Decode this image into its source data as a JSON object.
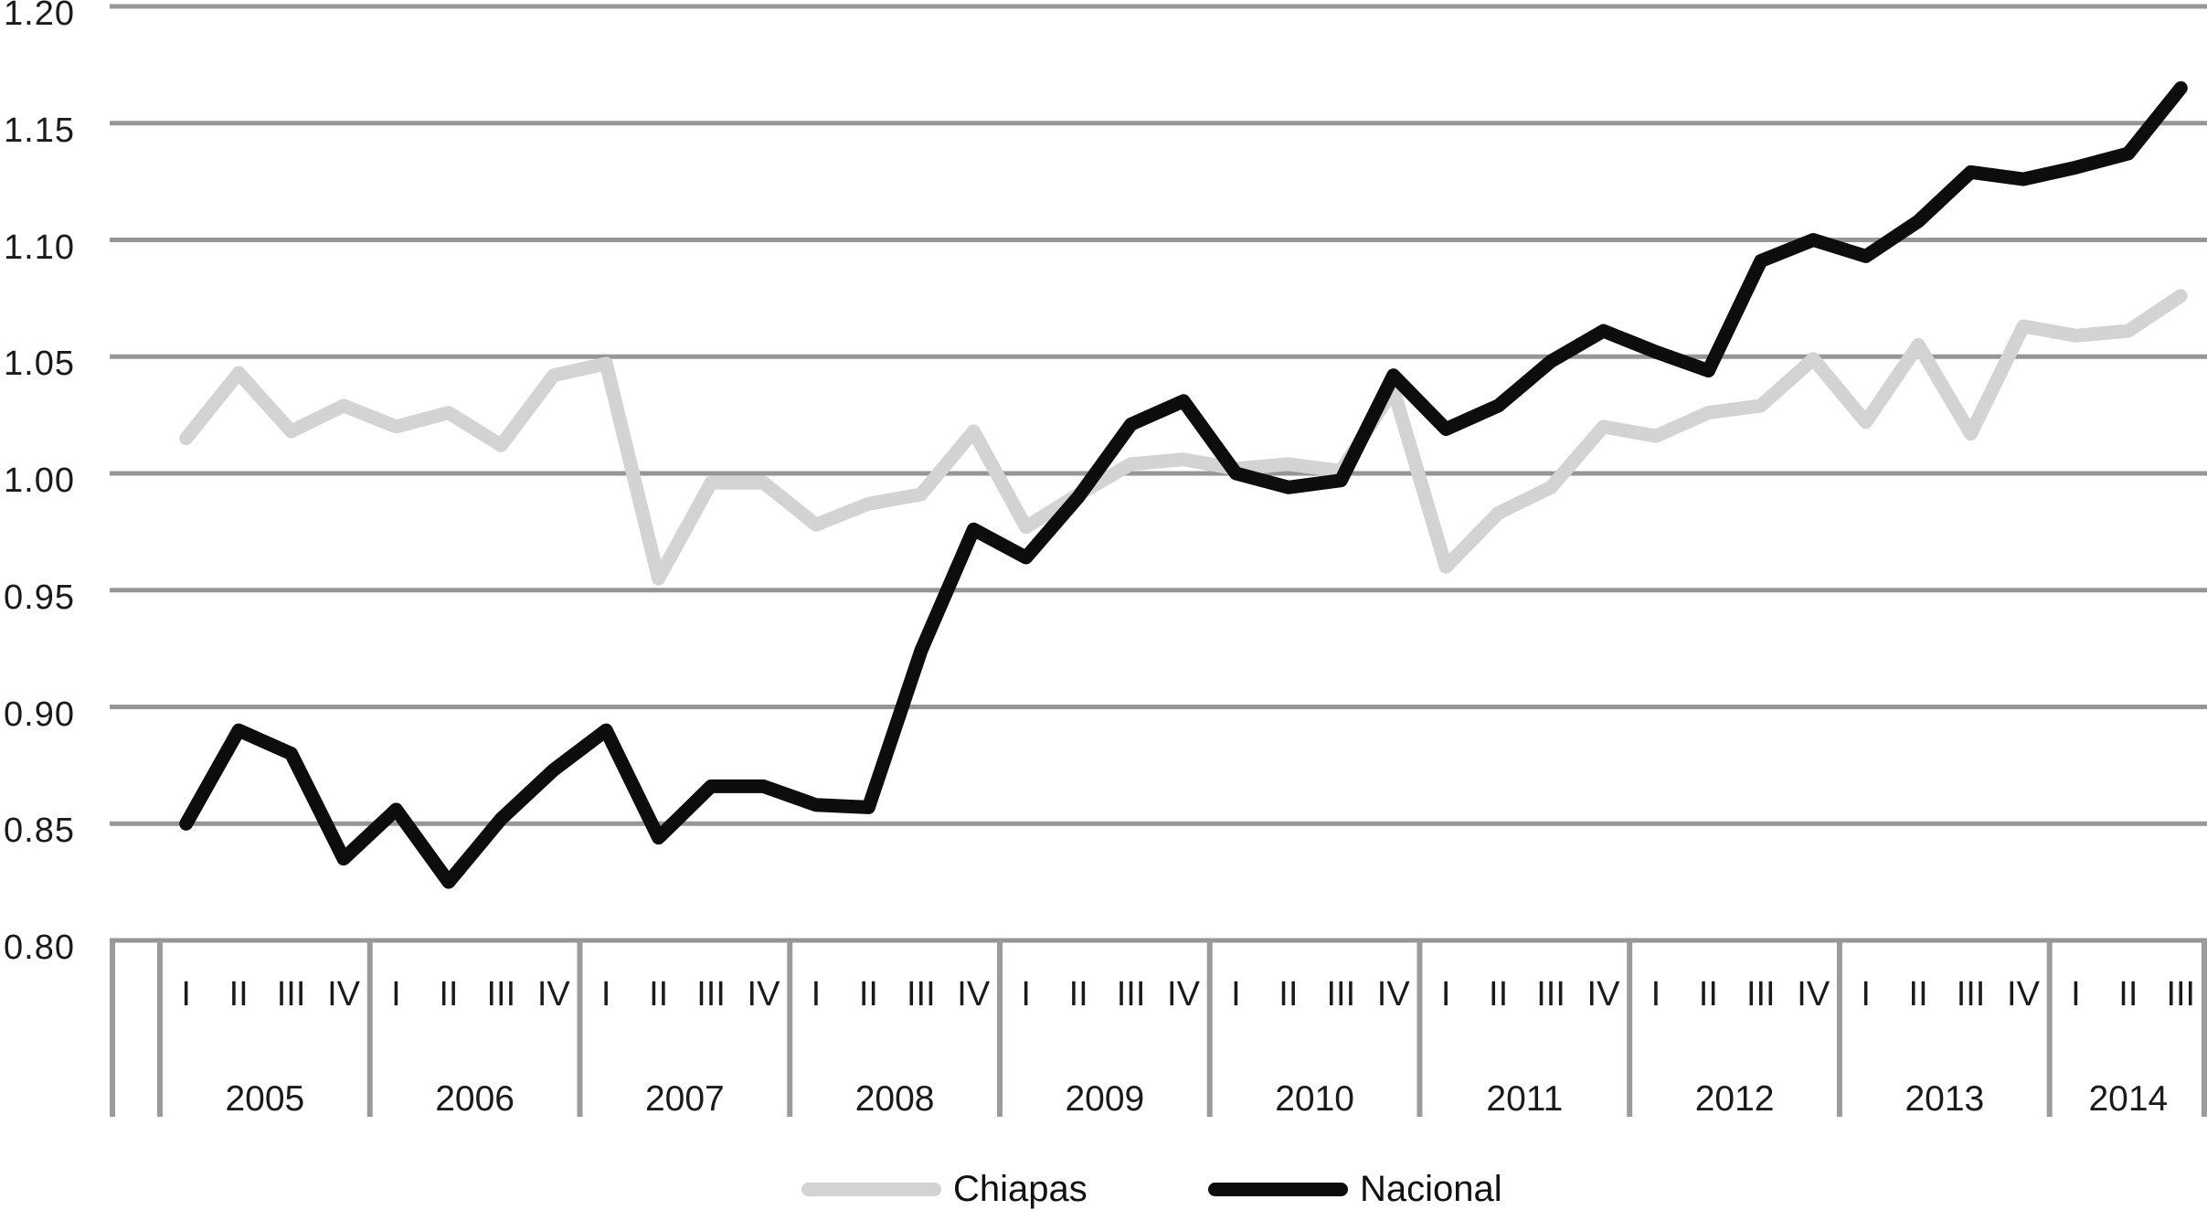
{
  "chart_data": {
    "type": "line",
    "title": "",
    "xlabel": "",
    "ylabel": "",
    "ylim": [
      0.8,
      1.2
    ],
    "y_tick_step": 0.05,
    "y_tick_labels": [
      "1.20",
      "1.15",
      "1.10",
      "1.05",
      "1.00",
      "0.95",
      "0.90",
      "0.85",
      "0.80"
    ],
    "grid": "horizontal",
    "grid_color": "#969696",
    "axis_table_border_color": "#9b9b9b",
    "legend_position": "bottom",
    "x_axis": {
      "years": [
        {
          "label": "2005",
          "quarters": [
            "I",
            "II",
            "III",
            "IV"
          ]
        },
        {
          "label": "2006",
          "quarters": [
            "I",
            "II",
            "III",
            "IV"
          ]
        },
        {
          "label": "2007",
          "quarters": [
            "I",
            "II",
            "III",
            "IV"
          ]
        },
        {
          "label": "2008",
          "quarters": [
            "I",
            "II",
            "III",
            "IV"
          ]
        },
        {
          "label": "2009",
          "quarters": [
            "I",
            "II",
            "III",
            "IV"
          ]
        },
        {
          "label": "2010",
          "quarters": [
            "I",
            "II",
            "III",
            "IV"
          ]
        },
        {
          "label": "2011",
          "quarters": [
            "I",
            "II",
            "III",
            "IV"
          ]
        },
        {
          "label": "2012",
          "quarters": [
            "I",
            "II",
            "III",
            "IV"
          ]
        },
        {
          "label": "2013",
          "quarters": [
            "I",
            "II",
            "III",
            "IV"
          ]
        },
        {
          "label": "2014",
          "quarters": [
            "I",
            "II",
            "III"
          ]
        }
      ]
    },
    "series": [
      {
        "name": "Chiapas",
        "color": "#d3d3d3",
        "values": [
          1.015,
          1.043,
          1.018,
          1.029,
          1.02,
          1.026,
          1.012,
          1.042,
          1.047,
          0.955,
          0.996,
          0.996,
          0.978,
          0.987,
          0.991,
          1.018,
          0.977,
          0.991,
          1.004,
          1.006,
          1.002,
          1.004,
          1.001,
          1.036,
          0.96,
          0.983,
          0.994,
          1.02,
          1.016,
          1.026,
          1.029,
          1.049,
          1.022,
          1.055,
          1.017,
          1.063,
          1.059,
          1.061,
          1.076
        ]
      },
      {
        "name": "Nacional",
        "color": "#0d0d0d",
        "values": [
          0.85,
          0.89,
          0.88,
          0.835,
          0.856,
          0.825,
          0.852,
          0.873,
          0.89,
          0.844,
          0.866,
          0.866,
          0.858,
          0.857,
          0.924,
          0.976,
          0.964,
          0.99,
          1.021,
          1.031,
          1.0,
          0.994,
          0.997,
          1.042,
          1.019,
          1.029,
          1.048,
          1.061,
          1.052,
          1.044,
          1.091,
          1.1,
          1.093,
          1.108,
          1.129,
          1.126,
          1.131,
          1.137,
          1.165
        ]
      }
    ]
  }
}
